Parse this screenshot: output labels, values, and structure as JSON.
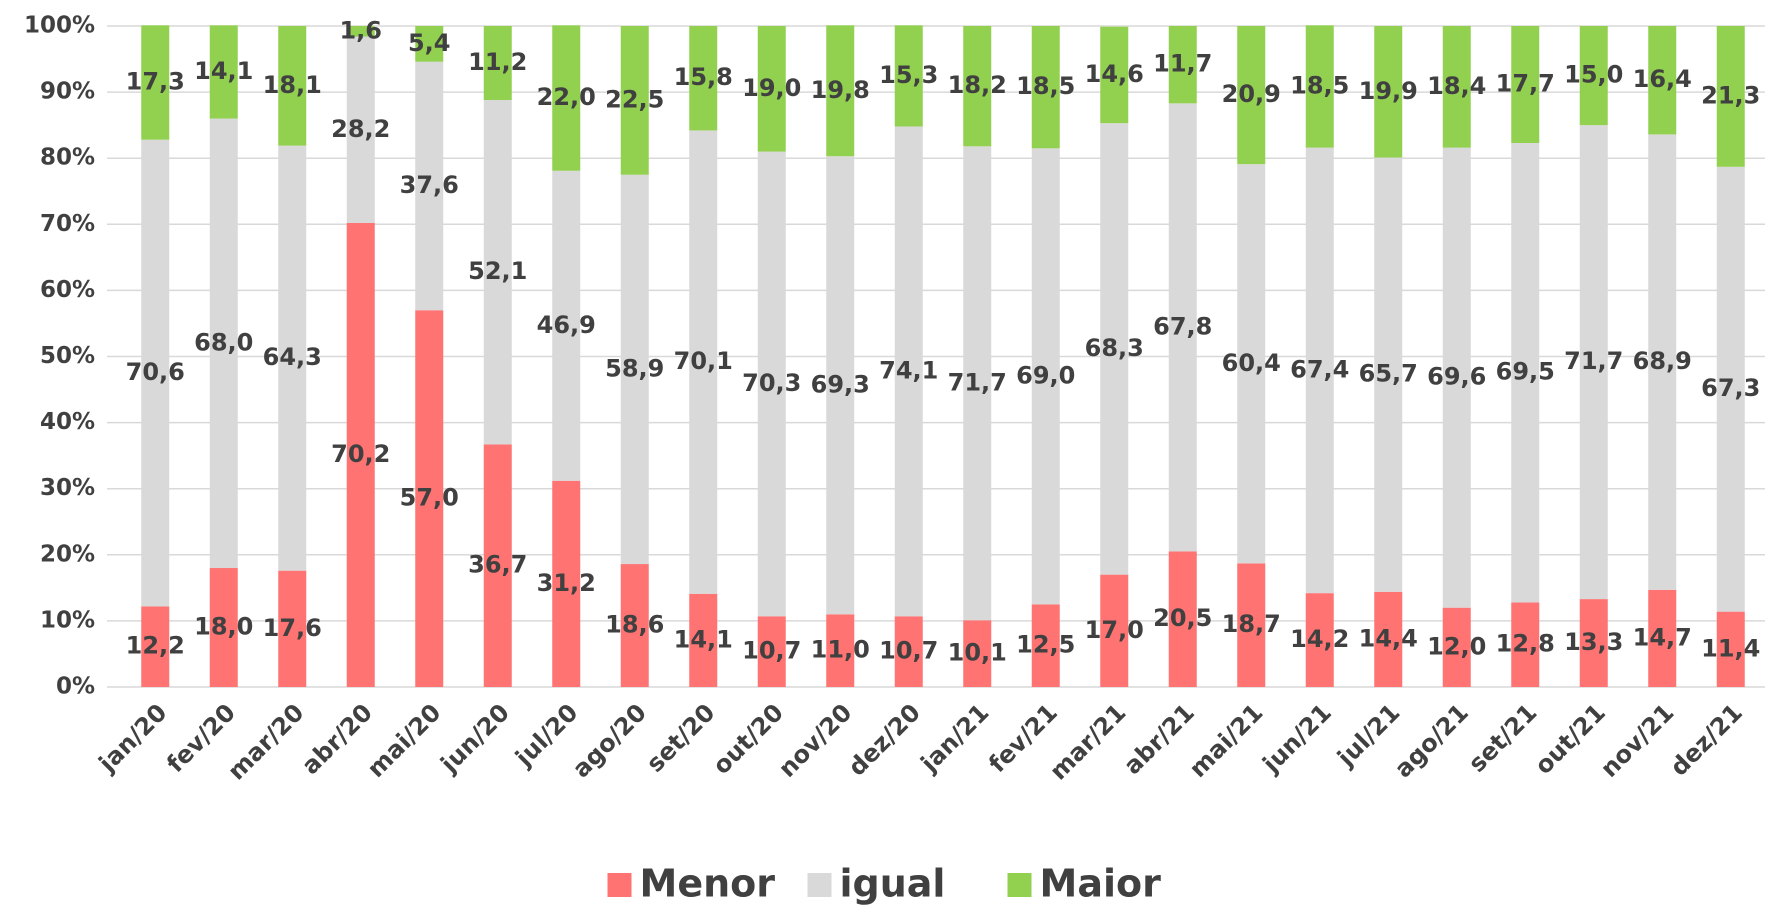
{
  "chart_data": {
    "type": "stacked_bar",
    "categories": [
      "jan/20",
      "fev/20",
      "mar/20",
      "abr/20",
      "mai/20",
      "jun/20",
      "jul/20",
      "ago/20",
      "set/20",
      "out/20",
      "nov/20",
      "dez/20",
      "jan/21",
      "fev/21",
      "mar/21",
      "abr/21",
      "mai/21",
      "jun/21",
      "jul/21",
      "ago/21",
      "set/21",
      "out/21",
      "nov/21",
      "dez/21"
    ],
    "series": [
      {
        "name": "Menor",
        "color": "#ff7373",
        "values": [
          12.2,
          18.0,
          17.6,
          70.2,
          57.0,
          36.7,
          31.2,
          18.6,
          14.1,
          10.7,
          11.0,
          10.7,
          10.1,
          12.5,
          17.0,
          20.5,
          18.7,
          14.2,
          14.4,
          12.0,
          12.8,
          13.3,
          14.7,
          11.4
        ],
        "value_labels": [
          "12,2",
          "18,0",
          "17,6",
          "70,2",
          "57,0",
          "36,7",
          "31,2",
          "18,6",
          "14,1",
          "10,7",
          "11,0",
          "10,7",
          "10,1",
          "12,5",
          "17,0",
          "20,5",
          "18,7",
          "14,2",
          "14,4",
          "12,0",
          "12,8",
          "13,3",
          "14,7",
          "11,4"
        ]
      },
      {
        "name": "igual",
        "color": "#d9d9d9",
        "values": [
          70.6,
          68.0,
          64.3,
          28.2,
          37.6,
          52.1,
          46.9,
          58.9,
          70.1,
          70.3,
          69.3,
          74.1,
          71.7,
          69.0,
          68.3,
          67.8,
          60.4,
          67.4,
          65.7,
          69.6,
          69.5,
          71.7,
          68.9,
          67.3
        ],
        "value_labels": [
          "70,6",
          "68,0",
          "64,3",
          "28,2",
          "37,6",
          "52,1",
          "46,9",
          "58,9",
          "70,1",
          "70,3",
          "69,3",
          "74,1",
          "71,7",
          "69,0",
          "68,3",
          "67,8",
          "60,4",
          "67,4",
          "65,7",
          "69,6",
          "69,5",
          "71,7",
          "68,9",
          "67,3"
        ]
      },
      {
        "name": "Maior",
        "color": "#92d050",
        "values": [
          17.3,
          14.1,
          18.1,
          1.6,
          5.4,
          11.2,
          22.0,
          22.5,
          15.8,
          19.0,
          19.8,
          15.3,
          18.2,
          18.5,
          14.6,
          11.7,
          20.9,
          18.5,
          19.9,
          18.4,
          17.7,
          15.0,
          16.4,
          21.3
        ],
        "value_labels": [
          "17,3",
          "14,1",
          "18,1",
          "1,6",
          "5,4",
          "11,2",
          "22,0",
          "22,5",
          "15,8",
          "19,0",
          "19,8",
          "15,3",
          "18,2",
          "18,5",
          "14,6",
          "11,7",
          "20,9",
          "18,5",
          "19,9",
          "18,4",
          "17,7",
          "15,0",
          "16,4",
          "21,3"
        ]
      }
    ],
    "ylim": [
      0,
      100
    ],
    "yticks": [
      {
        "value": 0,
        "label": "0%"
      },
      {
        "value": 10,
        "label": "10%"
      },
      {
        "value": 20,
        "label": "20%"
      },
      {
        "value": 30,
        "label": "30%"
      },
      {
        "value": 40,
        "label": "40%"
      },
      {
        "value": 50,
        "label": "50%"
      },
      {
        "value": 60,
        "label": "60%"
      },
      {
        "value": 70,
        "label": "70%"
      },
      {
        "value": 80,
        "label": "80%"
      },
      {
        "value": 90,
        "label": "90%"
      },
      {
        "value": 100,
        "label": "100%"
      }
    ],
    "grid": true,
    "legend": "bottom"
  }
}
